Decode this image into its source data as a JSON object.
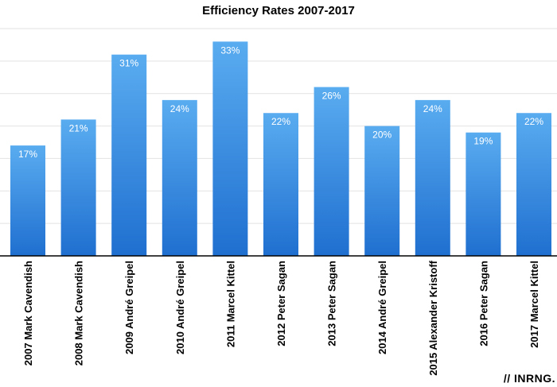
{
  "chart_data": {
    "type": "bar",
    "title": "Efficiency Rates 2007-2017",
    "categories": [
      "2007 Mark Cavendish",
      "2008 Mark Cavendish",
      "2009 André Greipel",
      "2010 André Greipel",
      "2011 Marcel Kittel",
      "2012 Peter Sagan",
      "2013 Peter Sagan",
      "2014 André Greipel",
      "2015 Alexander Kristoff",
      "2016 Peter Sagan",
      "2017 Marcel Kittel"
    ],
    "values": [
      17,
      21,
      31,
      24,
      33,
      22,
      26,
      20,
      24,
      19,
      22
    ],
    "value_labels": [
      "17%",
      "21%",
      "31%",
      "24%",
      "33%",
      "22%",
      "26%",
      "20%",
      "24%",
      "19%",
      "22%"
    ],
    "ylim": [
      0,
      35
    ],
    "grid": true,
    "bar_color_top": "#5aacf0",
    "bar_color_bottom": "#1f6fd0"
  },
  "watermark": "// INRNG."
}
